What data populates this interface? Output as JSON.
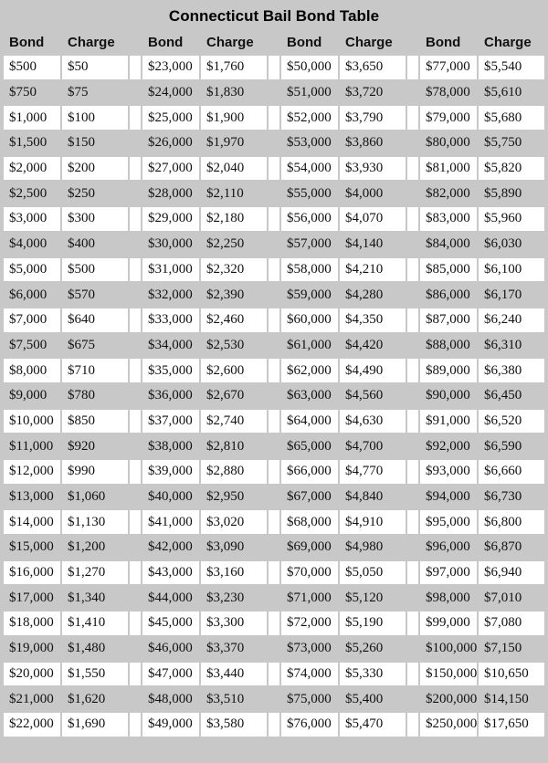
{
  "title": "Connecticut Bail Bond Table",
  "colors": {
    "page_background": "#c8c8c8",
    "row_white": "#ffffff",
    "row_gray": "#c8c8c8",
    "text": "#111111"
  },
  "chart_data": {
    "type": "table",
    "title": "Connecticut Bail Bond Table",
    "columns": [
      "Bond",
      "Charge",
      "Bond",
      "Charge",
      "Bond",
      "Charge",
      "Bond",
      "Charge"
    ],
    "rows": [
      [
        "$500",
        "$50",
        "$23,000",
        "$1,760",
        "$50,000",
        "$3,650",
        "$77,000",
        "$5,540"
      ],
      [
        "$750",
        "$75",
        "$24,000",
        "$1,830",
        "$51,000",
        "$3,720",
        "$78,000",
        "$5,610"
      ],
      [
        "$1,000",
        "$100",
        "$25,000",
        "$1,900",
        "$52,000",
        "$3,790",
        "$79,000",
        "$5,680"
      ],
      [
        "$1,500",
        "$150",
        "$26,000",
        "$1,970",
        "$53,000",
        "$3,860",
        "$80,000",
        "$5,750"
      ],
      [
        "$2,000",
        "$200",
        "$27,000",
        "$2,040",
        "$54,000",
        "$3,930",
        "$81,000",
        "$5,820"
      ],
      [
        "$2,500",
        "$250",
        "$28,000",
        "$2,110",
        "$55,000",
        "$4,000",
        "$82,000",
        "$5,890"
      ],
      [
        "$3,000",
        "$300",
        "$29,000",
        "$2,180",
        "$56,000",
        "$4,070",
        "$83,000",
        "$5,960"
      ],
      [
        "$4,000",
        "$400",
        "$30,000",
        "$2,250",
        "$57,000",
        "$4,140",
        "$84,000",
        "$6,030"
      ],
      [
        "$5,000",
        "$500",
        "$31,000",
        "$2,320",
        "$58,000",
        "$4,210",
        "$85,000",
        "$6,100"
      ],
      [
        "$6,000",
        "$570",
        "$32,000",
        "$2,390",
        "$59,000",
        "$4,280",
        "$86,000",
        "$6,170"
      ],
      [
        "$7,000",
        "$640",
        "$33,000",
        "$2,460",
        "$60,000",
        "$4,350",
        "$87,000",
        "$6,240"
      ],
      [
        "$7,500",
        "$675",
        "$34,000",
        "$2,530",
        "$61,000",
        "$4,420",
        "$88,000",
        "$6,310"
      ],
      [
        "$8,000",
        "$710",
        "$35,000",
        "$2,600",
        "$62,000",
        "$4,490",
        "$89,000",
        "$6,380"
      ],
      [
        "$9,000",
        "$780",
        "$36,000",
        "$2,670",
        "$63,000",
        "$4,560",
        "$90,000",
        "$6,450"
      ],
      [
        "$10,000",
        "$850",
        "$37,000",
        "$2,740",
        "$64,000",
        "$4,630",
        "$91,000",
        "$6,520"
      ],
      [
        "$11,000",
        "$920",
        "$38,000",
        "$2,810",
        "$65,000",
        "$4,700",
        "$92,000",
        "$6,590"
      ],
      [
        "$12,000",
        "$990",
        "$39,000",
        "$2,880",
        "$66,000",
        "$4,770",
        "$93,000",
        "$6,660"
      ],
      [
        "$13,000",
        "$1,060",
        "$40,000",
        "$2,950",
        "$67,000",
        "$4,840",
        "$94,000",
        "$6,730"
      ],
      [
        "$14,000",
        "$1,130",
        "$41,000",
        "$3,020",
        "$68,000",
        "$4,910",
        "$95,000",
        "$6,800"
      ],
      [
        "$15,000",
        "$1,200",
        "$42,000",
        "$3,090",
        "$69,000",
        "$4,980",
        "$96,000",
        "$6,870"
      ],
      [
        "$16,000",
        "$1,270",
        "$43,000",
        "$3,160",
        "$70,000",
        "$5,050",
        "$97,000",
        "$6,940"
      ],
      [
        "$17,000",
        "$1,340",
        "$44,000",
        "$3,230",
        "$71,000",
        "$5,120",
        "$98,000",
        "$7,010"
      ],
      [
        "$18,000",
        "$1,410",
        "$45,000",
        "$3,300",
        "$72,000",
        "$5,190",
        "$99,000",
        "$7,080"
      ],
      [
        "$19,000",
        "$1,480",
        "$46,000",
        "$3,370",
        "$73,000",
        "$5,260",
        "$100,000",
        "$7,150"
      ],
      [
        "$20,000",
        "$1,550",
        "$47,000",
        "$3,440",
        "$74,000",
        "$5,330",
        "$150,000",
        "$10,650"
      ],
      [
        "$21,000",
        "$1,620",
        "$48,000",
        "$3,510",
        "$75,000",
        "$5,400",
        "$200,000",
        "$14,150"
      ],
      [
        "$22,000",
        "$1,690",
        "$49,000",
        "$3,580",
        "$76,000",
        "$5,470",
        "$250,000",
        "$17,650"
      ]
    ]
  }
}
